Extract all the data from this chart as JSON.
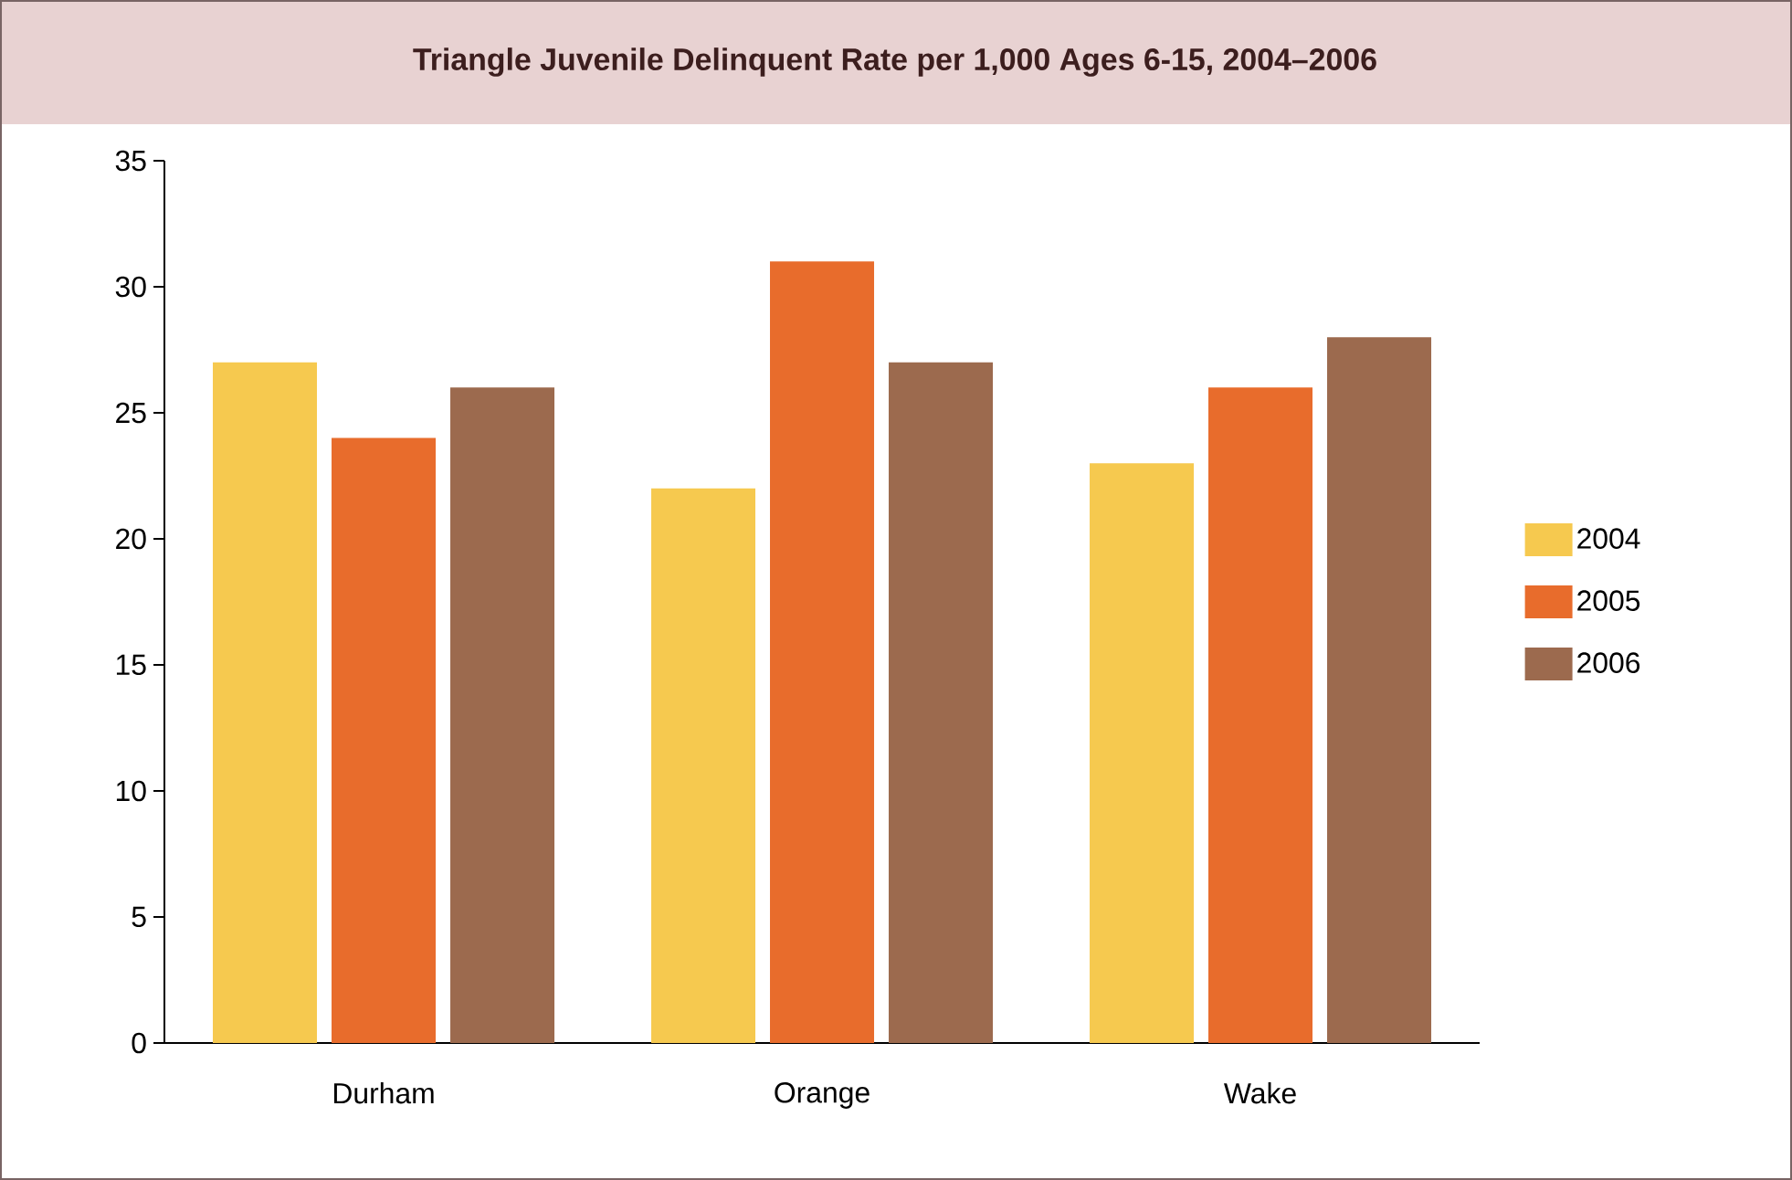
{
  "chart_data": {
    "type": "bar",
    "title": "Triangle Juvenile Delinquent Rate per 1,000 Ages 6-15, 2004–2006",
    "categories": [
      "Durham",
      "Orange",
      "Wake"
    ],
    "series": [
      {
        "name": "2004",
        "color": "#f6c94f",
        "values": [
          27,
          22,
          23
        ]
      },
      {
        "name": "2005",
        "color": "#e86c2c",
        "values": [
          24,
          31,
          26
        ]
      },
      {
        "name": "2006",
        "color": "#9c6a4e",
        "values": [
          26,
          27,
          28
        ]
      }
    ],
    "ylim": [
      0,
      35
    ],
    "yticks": [
      0,
      5,
      10,
      15,
      20,
      25,
      30,
      35
    ],
    "grid": false,
    "legend": "right"
  }
}
